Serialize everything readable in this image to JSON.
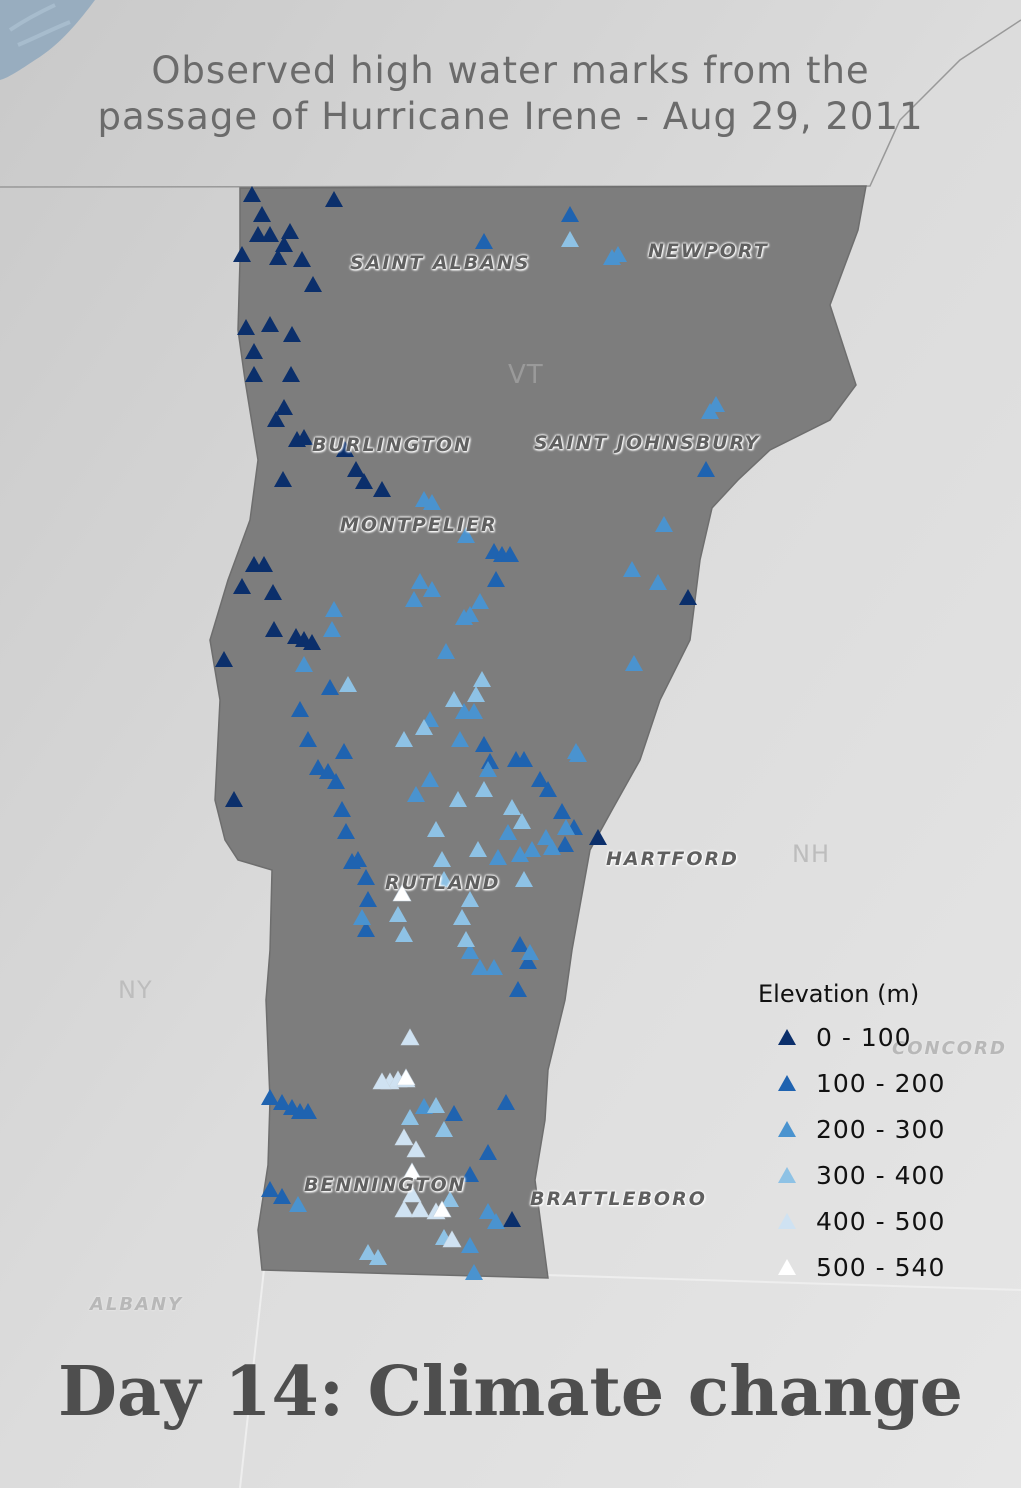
{
  "map": {
    "title_line1": "Observed high water marks from the",
    "title_line2": "passage of Hurricane Irene - Aug 29, 2011",
    "footer": "Day 14: Climate change",
    "state_labels": {
      "vt": "VT",
      "nh": "NH",
      "ny": "NY"
    },
    "cities": {
      "saint_albans": "SAINT ALBANS",
      "newport": "NEWPORT",
      "burlington": "BURLINGTON",
      "saint_johnsbury": "SAINT JOHNSBURY",
      "montpelier": "MONTPELIER",
      "hartford": "HARTFORD",
      "rutland": "RUTLAND",
      "bennington": "BENNINGTON",
      "brattleboro": "BRATTLEBORO",
      "albany": "ALBANY",
      "concord": "CONCORD"
    },
    "colors": {
      "background": "#d9d9d9",
      "vermont_fill": "#7d7d7d",
      "water": "#8fa8bd"
    }
  },
  "legend": {
    "title": "Elevation (m)",
    "classes": [
      {
        "label": "0 - 100",
        "color": "#0b2f6b"
      },
      {
        "label": "100 - 200",
        "color": "#1f63b0"
      },
      {
        "label": "200 - 300",
        "color": "#4a93cf"
      },
      {
        "label": "300 - 400",
        "color": "#8ec2e5"
      },
      {
        "label": "400 - 500",
        "color": "#cfe2f2"
      },
      {
        "label": "500 - 540",
        "color": "#ffffff"
      }
    ]
  }
}
